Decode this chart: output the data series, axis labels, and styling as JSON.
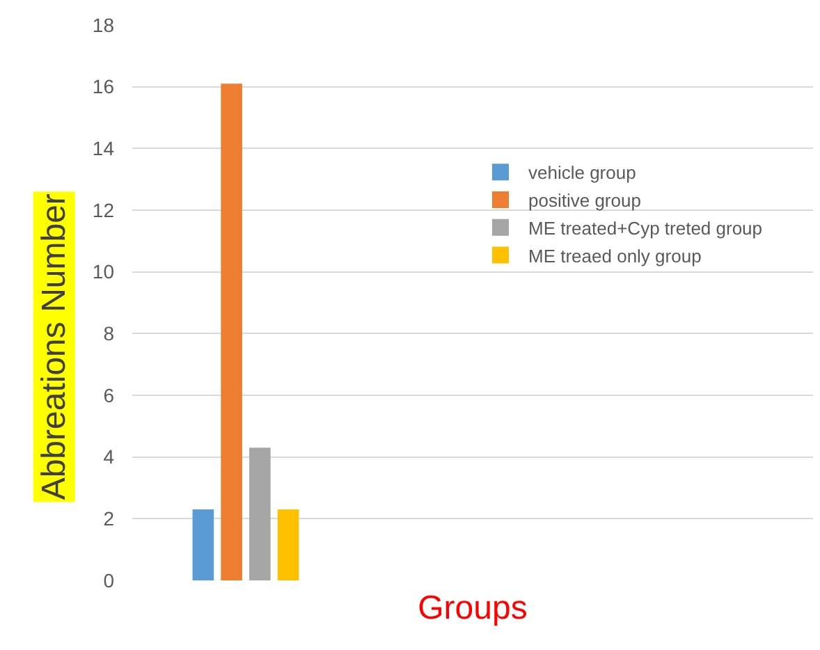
{
  "chart_data": {
    "type": "bar",
    "xlabel": "Groups",
    "ylabel": "Abbreations Number",
    "categories": [
      null
    ],
    "series": [
      {
        "name": "vehicle group",
        "color": "#5b9bd5",
        "values": [
          2.3
        ]
      },
      {
        "name": "positive group",
        "color": "#ed7d31",
        "values": [
          16.1
        ]
      },
      {
        "name": "ME treated+Cyp treted group",
        "color": "#a5a5a5",
        "values": [
          4.3
        ]
      },
      {
        "name": "ME treaed only group",
        "color": "#ffc000",
        "values": [
          2.3
        ]
      }
    ],
    "ylim": [
      0,
      18
    ],
    "yticks": [
      0,
      2,
      4,
      6,
      8,
      10,
      12,
      14,
      16,
      18
    ],
    "grid": "y",
    "legend": "right"
  }
}
